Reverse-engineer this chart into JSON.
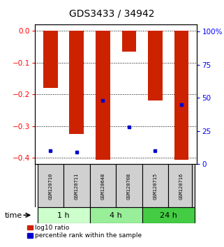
{
  "title": "GDS3433 / 34942",
  "samples": [
    "GSM120710",
    "GSM120711",
    "GSM120648",
    "GSM120708",
    "GSM120715",
    "GSM120716"
  ],
  "groups": [
    {
      "label": "1 h",
      "indices": [
        0,
        1
      ],
      "color": "#ccffcc"
    },
    {
      "label": "4 h",
      "indices": [
        2,
        3
      ],
      "color": "#99ee99"
    },
    {
      "label": "24 h",
      "indices": [
        4,
        5
      ],
      "color": "#44cc44"
    }
  ],
  "log10_ratio": [
    -0.18,
    -0.325,
    -0.405,
    -0.065,
    -0.22,
    -0.405
  ],
  "percentile_rank_values": [
    10,
    9,
    48,
    28,
    10,
    45
  ],
  "ylim_left": [
    -0.42,
    0.02
  ],
  "ylim_right": [
    0,
    105
  ],
  "yticks_left": [
    0,
    -0.1,
    -0.2,
    -0.3,
    -0.4
  ],
  "yticks_right": [
    0,
    25,
    50,
    75,
    100
  ],
  "bar_color": "#cc2200",
  "dot_color": "#0000cc",
  "legend_red": "log10 ratio",
  "legend_blue": "percentile rank within the sample"
}
